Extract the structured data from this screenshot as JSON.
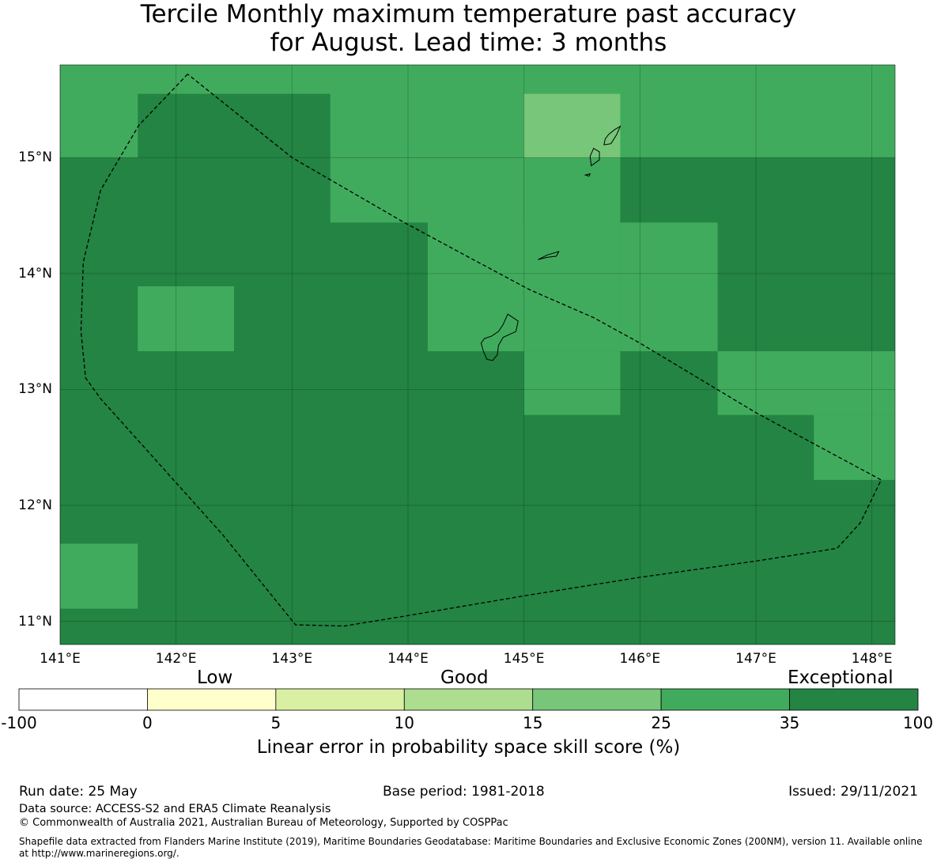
{
  "title_line1": "Tercile Monthly maximum temperature past accuracy",
  "title_line2": "for August. Lead time: 3 months",
  "map": {
    "lon_range": [
      141.0,
      148.2
    ],
    "lat_range": [
      10.8,
      15.8
    ],
    "lon_ticks": [
      {
        "value": 141,
        "label": "141°E"
      },
      {
        "value": 142,
        "label": "142°E"
      },
      {
        "value": 143,
        "label": "143°E"
      },
      {
        "value": 144,
        "label": "144°E"
      },
      {
        "value": 145,
        "label": "145°E"
      },
      {
        "value": 146,
        "label": "146°E"
      },
      {
        "value": 147,
        "label": "147°E"
      },
      {
        "value": 148,
        "label": "148°E"
      }
    ],
    "lat_ticks": [
      {
        "value": 15,
        "label": "15°N"
      },
      {
        "value": 14,
        "label": "14°N"
      },
      {
        "value": 13,
        "label": "13°N"
      },
      {
        "value": 12,
        "label": "12°N"
      },
      {
        "value": 11,
        "label": "11°N"
      }
    ],
    "grid": "on",
    "cells": [
      {
        "lon": [
          141.0,
          148.2
        ],
        "lat": [
          10.8,
          15.8
        ],
        "bin": 6
      },
      {
        "lon": [
          141.0,
          148.2
        ],
        "lat": [
          15.0,
          15.8
        ],
        "bin": 5
      },
      {
        "lon": [
          141.67,
          143.33
        ],
        "lat": [
          15.0,
          15.55
        ],
        "bin": 6
      },
      {
        "lon": [
          143.33,
          145.0
        ],
        "lat": [
          14.44,
          15.0
        ],
        "bin": 5
      },
      {
        "lon": [
          144.17,
          145.83
        ],
        "lat": [
          13.33,
          14.44
        ],
        "bin": 5
      },
      {
        "lon": [
          145.0,
          145.83
        ],
        "lat": [
          14.44,
          15.0
        ],
        "bin": 5
      },
      {
        "lon": [
          145.83,
          146.67
        ],
        "lat": [
          13.33,
          14.44
        ],
        "bin": 5
      },
      {
        "lon": [
          145.0,
          145.83
        ],
        "lat": [
          12.78,
          13.33
        ],
        "bin": 5
      },
      {
        "lon": [
          146.67,
          148.2
        ],
        "lat": [
          12.78,
          13.33
        ],
        "bin": 5
      },
      {
        "lon": [
          147.5,
          148.2
        ],
        "lat": [
          12.22,
          12.78
        ],
        "bin": 5
      },
      {
        "lon": [
          141.67,
          142.5
        ],
        "lat": [
          13.33,
          13.89
        ],
        "bin": 5
      },
      {
        "lon": [
          141.0,
          141.67
        ],
        "lat": [
          11.11,
          11.67
        ],
        "bin": 5
      },
      {
        "lon": [
          145.0,
          145.83
        ],
        "lat": [
          15.0,
          15.55
        ],
        "bin": 4
      }
    ],
    "eez_boundary": [
      [
        142.1,
        15.72
      ],
      [
        141.68,
        15.28
      ],
      [
        141.35,
        14.72
      ],
      [
        141.2,
        14.1
      ],
      [
        141.18,
        13.5
      ],
      [
        141.22,
        13.1
      ],
      [
        141.35,
        12.92
      ],
      [
        142.4,
        11.75
      ],
      [
        143.03,
        10.97
      ],
      [
        143.45,
        10.96
      ],
      [
        144.0,
        11.05
      ],
      [
        145.0,
        11.22
      ],
      [
        146.0,
        11.38
      ],
      [
        147.0,
        11.52
      ],
      [
        147.7,
        11.63
      ],
      [
        147.9,
        11.85
      ],
      [
        148.08,
        12.22
      ],
      [
        147.0,
        12.8
      ],
      [
        146.0,
        13.4
      ],
      [
        145.6,
        13.62
      ],
      [
        145.05,
        13.86
      ],
      [
        144.6,
        14.1
      ],
      [
        143.95,
        14.45
      ],
      [
        143.0,
        15.0
      ],
      [
        142.1,
        15.72
      ]
    ],
    "islands": [
      {
        "name": "Guam",
        "points": [
          [
            144.86,
            13.65
          ],
          [
            144.95,
            13.59
          ],
          [
            144.93,
            13.5
          ],
          [
            144.82,
            13.45
          ],
          [
            144.78,
            13.38
          ],
          [
            144.77,
            13.3
          ],
          [
            144.73,
            13.25
          ],
          [
            144.68,
            13.26
          ],
          [
            144.65,
            13.33
          ],
          [
            144.63,
            13.4
          ],
          [
            144.66,
            13.44
          ],
          [
            144.72,
            13.46
          ],
          [
            144.78,
            13.5
          ],
          [
            144.82,
            13.56
          ],
          [
            144.86,
            13.65
          ]
        ]
      },
      {
        "name": "Rota",
        "points": [
          [
            145.12,
            14.12
          ],
          [
            145.2,
            14.16
          ],
          [
            145.3,
            14.19
          ],
          [
            145.28,
            14.15
          ],
          [
            145.2,
            14.14
          ],
          [
            145.12,
            14.12
          ]
        ]
      },
      {
        "name": "Tinian",
        "points": [
          [
            145.58,
            14.93
          ],
          [
            145.65,
            14.98
          ],
          [
            145.65,
            15.05
          ],
          [
            145.6,
            15.08
          ],
          [
            145.57,
            15.01
          ],
          [
            145.58,
            14.93
          ]
        ]
      },
      {
        "name": "Saipan",
        "points": [
          [
            145.69,
            15.11
          ],
          [
            145.75,
            15.12
          ],
          [
            145.8,
            15.2
          ],
          [
            145.83,
            15.27
          ],
          [
            145.78,
            15.24
          ],
          [
            145.73,
            15.2
          ],
          [
            145.7,
            15.16
          ],
          [
            145.69,
            15.11
          ]
        ]
      },
      {
        "name": "Aguijan",
        "points": [
          [
            145.53,
            14.85
          ],
          [
            145.57,
            14.86
          ],
          [
            145.56,
            14.84
          ],
          [
            145.53,
            14.85
          ]
        ]
      }
    ]
  },
  "legend": {
    "categories": [
      "Low",
      "Good",
      "Exceptional"
    ],
    "bins": [
      {
        "from": "-100",
        "color": "#ffffff"
      },
      {
        "from": "0",
        "color": "#ffffcc"
      },
      {
        "from": "5",
        "color": "#d9f0a3"
      },
      {
        "from": "10",
        "color": "#addd8e"
      },
      {
        "from": "15",
        "color": "#78c679"
      },
      {
        "from": "25",
        "color": "#41ab5d"
      },
      {
        "from": "35",
        "color": "#238443"
      }
    ],
    "ticks": [
      "-100",
      "0",
      "5",
      "10",
      "15",
      "25",
      "35",
      "100"
    ],
    "label": "Linear error in probability space skill score (%)"
  },
  "footer": {
    "run_date": "Run date: 25 May",
    "base_period": "Base period: 1981-2018",
    "issued": "Issued: 29/11/2021",
    "data_source": "Data source: ACCESS-S2 and ERA5 Climate Reanalysis",
    "copyright": "© Commonwealth of Australia 2021, Australian Bureau of Meteorology, Supported by COSPPac",
    "shapefile": "Shapefile data extracted from Flanders Marine Institute (2019), Maritime Boundaries Geodatabase: Maritime Boundaries and Exclusive Economic Zones (200NM), version 11. Available online at http://www.marineregions.org/."
  }
}
